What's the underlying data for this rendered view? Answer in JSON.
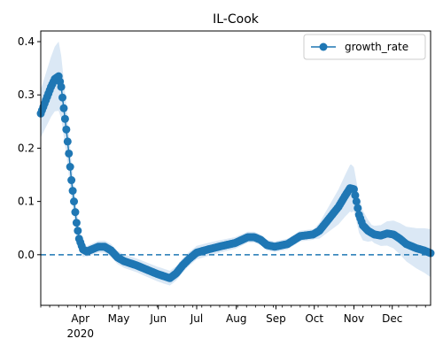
{
  "chart_data": {
    "type": "line",
    "title": "IL-Cook",
    "xlabel": "",
    "ylabel": "",
    "x_range": [
      "2020-03-01",
      "2020-12-31"
    ],
    "ylim": [
      -0.095,
      0.42
    ],
    "y_ticks": [
      0.0,
      0.1,
      0.2,
      0.3,
      0.4
    ],
    "y_tick_labels": [
      "0.0",
      "0.1",
      "0.2",
      "0.3",
      "0.4"
    ],
    "x_ticks": [
      {
        "date": "2020-04-01",
        "label": "Apr"
      },
      {
        "date": "2020-05-01",
        "label": "May"
      },
      {
        "date": "2020-06-01",
        "label": "Jun"
      },
      {
        "date": "2020-07-01",
        "label": "Jul"
      },
      {
        "date": "2020-08-01",
        "label": "Aug"
      },
      {
        "date": "2020-09-01",
        "label": "Sep"
      },
      {
        "date": "2020-10-01",
        "label": "Oct"
      },
      {
        "date": "2020-11-01",
        "label": "Nov"
      },
      {
        "date": "2020-12-01",
        "label": "Dec"
      }
    ],
    "x_year_label": "2020",
    "reference_line": {
      "y": 0.0,
      "style": "dashed",
      "color": "#1f77b4"
    },
    "legend": {
      "placement": "top-right"
    },
    "series": [
      {
        "name": "growth_rate",
        "color": "#1f77b4",
        "marker": "circle",
        "band_color": "#dbe8f5",
        "keypoints": [
          [
            "2020-03-01",
            0.265
          ],
          [
            "2020-03-05",
            0.29
          ],
          [
            "2020-03-09",
            0.315
          ],
          [
            "2020-03-12",
            0.33
          ],
          [
            "2020-03-15",
            0.335
          ],
          [
            "2020-03-17",
            0.315
          ],
          [
            "2020-03-19",
            0.275
          ],
          [
            "2020-03-21",
            0.235
          ],
          [
            "2020-03-23",
            0.19
          ],
          [
            "2020-03-25",
            0.14
          ],
          [
            "2020-03-27",
            0.1
          ],
          [
            "2020-03-29",
            0.06
          ],
          [
            "2020-03-31",
            0.03
          ],
          [
            "2020-04-03",
            0.01
          ],
          [
            "2020-04-06",
            0.006
          ],
          [
            "2020-04-10",
            0.01
          ],
          [
            "2020-04-15",
            0.015
          ],
          [
            "2020-04-20",
            0.015
          ],
          [
            "2020-04-25",
            0.008
          ],
          [
            "2020-04-30",
            -0.005
          ],
          [
            "2020-05-05",
            -0.012
          ],
          [
            "2020-05-10",
            -0.016
          ],
          [
            "2020-05-15",
            -0.02
          ],
          [
            "2020-05-20",
            -0.025
          ],
          [
            "2020-05-25",
            -0.03
          ],
          [
            "2020-05-31",
            -0.036
          ],
          [
            "2020-06-05",
            -0.04
          ],
          [
            "2020-06-10",
            -0.044
          ],
          [
            "2020-06-15",
            -0.035
          ],
          [
            "2020-06-20",
            -0.02
          ],
          [
            "2020-06-25",
            -0.008
          ],
          [
            "2020-07-01",
            0.004
          ],
          [
            "2020-07-10",
            0.01
          ],
          [
            "2020-07-20",
            0.016
          ],
          [
            "2020-07-31",
            0.022
          ],
          [
            "2020-08-10",
            0.033
          ],
          [
            "2020-08-15",
            0.033
          ],
          [
            "2020-08-20",
            0.028
          ],
          [
            "2020-08-25",
            0.018
          ],
          [
            "2020-08-31",
            0.015
          ],
          [
            "2020-09-10",
            0.02
          ],
          [
            "2020-09-20",
            0.035
          ],
          [
            "2020-09-30",
            0.038
          ],
          [
            "2020-10-05",
            0.045
          ],
          [
            "2020-10-10",
            0.06
          ],
          [
            "2020-10-15",
            0.075
          ],
          [
            "2020-10-20",
            0.09
          ],
          [
            "2020-10-25",
            0.11
          ],
          [
            "2020-10-29",
            0.125
          ],
          [
            "2020-11-01",
            0.123
          ],
          [
            "2020-11-03",
            0.1
          ],
          [
            "2020-11-05",
            0.075
          ],
          [
            "2020-11-08",
            0.055
          ],
          [
            "2020-11-12",
            0.045
          ],
          [
            "2020-11-17",
            0.038
          ],
          [
            "2020-11-22",
            0.036
          ],
          [
            "2020-11-27",
            0.04
          ],
          [
            "2020-12-02",
            0.038
          ],
          [
            "2020-12-07",
            0.03
          ],
          [
            "2020-12-12",
            0.02
          ],
          [
            "2020-12-20",
            0.012
          ],
          [
            "2020-12-26",
            0.008
          ],
          [
            "2020-12-31",
            0.003
          ]
        ],
        "band_halfwidth_keypoints": [
          [
            "2020-03-01",
            0.045
          ],
          [
            "2020-03-15",
            0.065
          ],
          [
            "2020-03-25",
            0.035
          ],
          [
            "2020-04-05",
            0.01
          ],
          [
            "2020-04-25",
            0.012
          ],
          [
            "2020-06-05",
            0.014
          ],
          [
            "2020-07-15",
            0.012
          ],
          [
            "2020-08-15",
            0.01
          ],
          [
            "2020-10-01",
            0.01
          ],
          [
            "2020-10-30",
            0.045
          ],
          [
            "2020-11-15",
            0.015
          ],
          [
            "2020-12-31",
            0.045
          ]
        ]
      }
    ]
  }
}
